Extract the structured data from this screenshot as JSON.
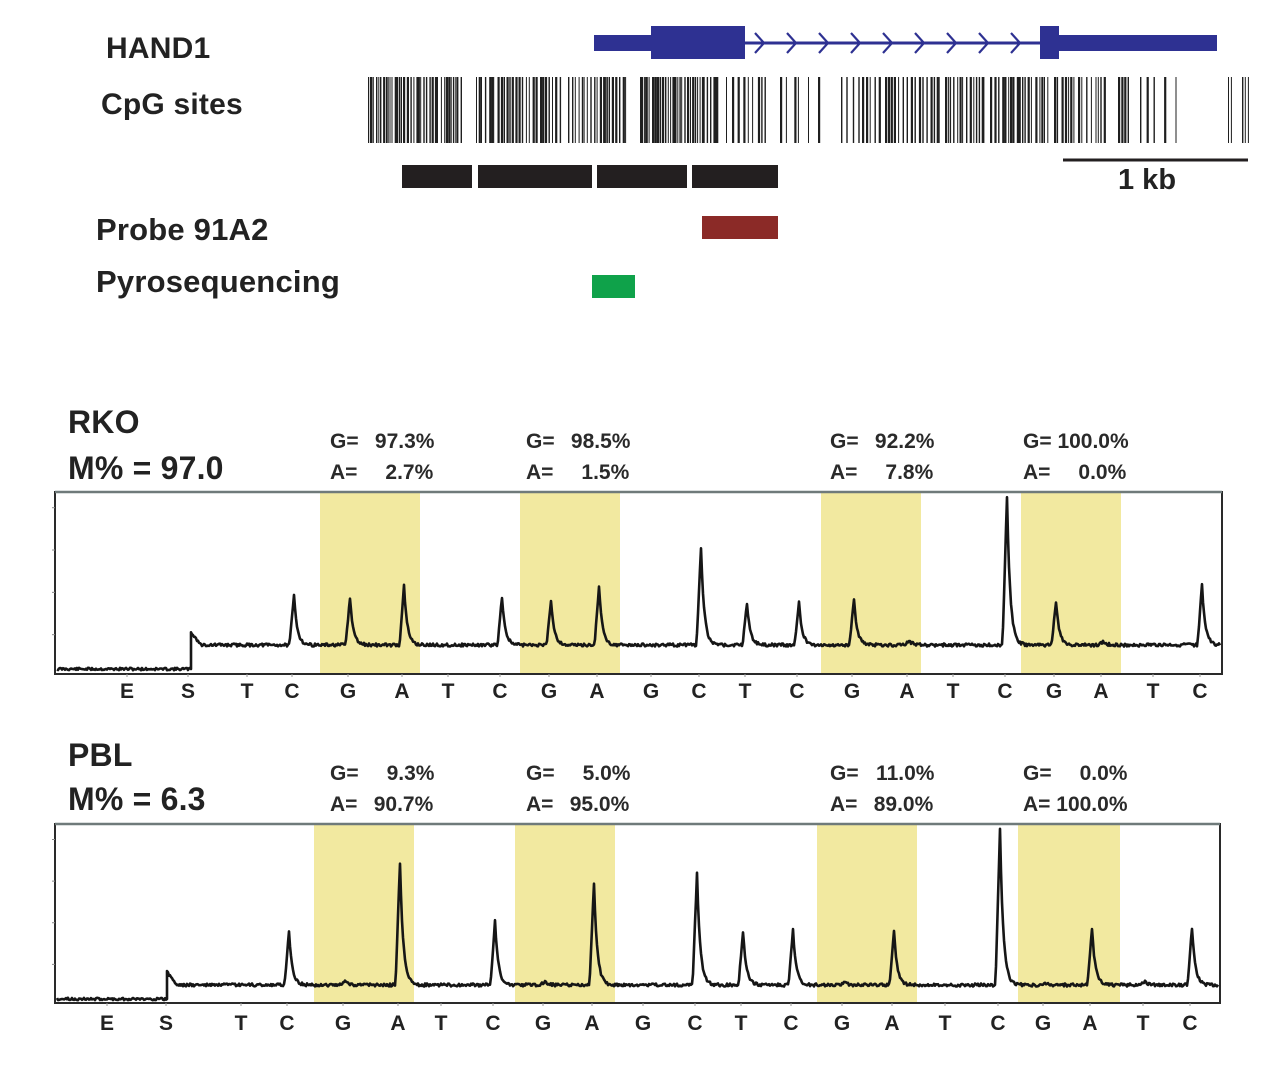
{
  "gene_map": {
    "gene_label": "HAND1",
    "cpg_label": "CpG sites",
    "probe_label": "Probe 91A2",
    "pyro_label": "Pyrosequencing",
    "scale_label": "1 kb",
    "gene_color": "#2e3192",
    "probe_color": "#8b2a27",
    "pyro_color": "#0fa24a",
    "region_bar_color": "#231f20",
    "intron_arrow_count": 9,
    "region_segments": 4
  },
  "chart_data": [
    {
      "type": "line",
      "title": "RKO",
      "subtitle": "M% = 97.0",
      "sample": "RKO",
      "methylation_percent": 97.0,
      "xlabel": "",
      "ylabel": "",
      "dispensation_order": [
        "E",
        "S",
        "T",
        "C",
        "G",
        "A",
        "T",
        "C",
        "G",
        "A",
        "G",
        "C",
        "T",
        "C",
        "G",
        "A",
        "T",
        "C",
        "G",
        "A",
        "T",
        "C"
      ],
      "peak_relative_heights": [
        0,
        0.08,
        0,
        0.33,
        0.31,
        0.39,
        0,
        0.32,
        0.3,
        0.39,
        0,
        0.64,
        0.28,
        0.28,
        0.3,
        0.03,
        0,
        0.98,
        0.29,
        0.02,
        0,
        0.4
      ],
      "highlight_cpg_sites": [
        {
          "G": "97.3%",
          "A": "2.7%",
          "G_value": 97.3,
          "A_value": 2.7
        },
        {
          "G": "98.5%",
          "A": "1.5%",
          "G_value": 98.5,
          "A_value": 1.5
        },
        {
          "G": "92.2%",
          "A": "7.8%",
          "G_value": 92.2,
          "A_value": 7.8
        },
        {
          "G": "100.0%",
          "A": "0.0%",
          "G_value": 100.0,
          "A_value": 0.0
        }
      ],
      "highlight_color": "#f2e9a0",
      "grid": false
    },
    {
      "type": "line",
      "title": "PBL",
      "subtitle": "M% = 6.3",
      "sample": "PBL",
      "methylation_percent": 6.3,
      "xlabel": "",
      "ylabel": "",
      "dispensation_order": [
        "E",
        "S",
        "T",
        "C",
        "G",
        "A",
        "T",
        "C",
        "G",
        "A",
        "G",
        "C",
        "T",
        "C",
        "G",
        "A",
        "T",
        "C",
        "G",
        "A",
        "T",
        "C"
      ],
      "peak_relative_heights": [
        0,
        0.08,
        0,
        0.34,
        0.03,
        0.77,
        0,
        0.4,
        0.02,
        0.64,
        0,
        0.7,
        0.34,
        0.35,
        0.02,
        0.34,
        0,
        0.98,
        0.01,
        0.36,
        0.02,
        0.36
      ],
      "highlight_cpg_sites": [
        {
          "G": "9.3%",
          "A": "90.7%",
          "G_value": 9.3,
          "A_value": 90.7
        },
        {
          "G": "5.0%",
          "A": "95.0%",
          "G_value": 5.0,
          "A_value": 95.0
        },
        {
          "G": "11.0%",
          "A": "89.0%",
          "G_value": 11.0,
          "A_value": 89.0
        },
        {
          "G": "0.0%",
          "A": "100.0%",
          "G_value": 0.0,
          "A_value": 100.0
        }
      ],
      "highlight_color": "#f2e9a0",
      "grid": false
    }
  ]
}
